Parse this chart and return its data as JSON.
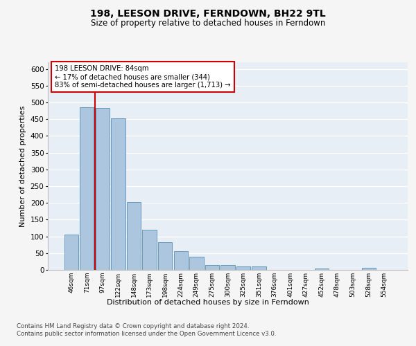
{
  "title": "198, LEESON DRIVE, FERNDOWN, BH22 9TL",
  "subtitle": "Size of property relative to detached houses in Ferndown",
  "xlabel": "Distribution of detached houses by size in Ferndown",
  "ylabel": "Number of detached properties",
  "categories": [
    "46sqm",
    "71sqm",
    "97sqm",
    "122sqm",
    "148sqm",
    "173sqm",
    "198sqm",
    "224sqm",
    "249sqm",
    "275sqm",
    "300sqm",
    "325sqm",
    "351sqm",
    "376sqm",
    "401sqm",
    "427sqm",
    "452sqm",
    "478sqm",
    "503sqm",
    "528sqm",
    "554sqm"
  ],
  "values": [
    105,
    485,
    483,
    453,
    202,
    120,
    83,
    56,
    40,
    15,
    15,
    10,
    10,
    0,
    0,
    0,
    5,
    0,
    0,
    6,
    0
  ],
  "bar_color": "#adc6e0",
  "bar_edge_color": "#6699bb",
  "vline_color": "#cc0000",
  "annotation_text": "198 LEESON DRIVE: 84sqm\n← 17% of detached houses are smaller (344)\n83% of semi-detached houses are larger (1,713) →",
  "annotation_box_color": "#ffffff",
  "annotation_box_edge_color": "#cc0000",
  "ylim": [
    0,
    620
  ],
  "yticks": [
    0,
    50,
    100,
    150,
    200,
    250,
    300,
    350,
    400,
    450,
    500,
    550,
    600
  ],
  "footer": "Contains HM Land Registry data © Crown copyright and database right 2024.\nContains public sector information licensed under the Open Government Licence v3.0.",
  "background_color": "#e8eef5",
  "fig_background_color": "#f5f5f5",
  "grid_color": "#ffffff"
}
